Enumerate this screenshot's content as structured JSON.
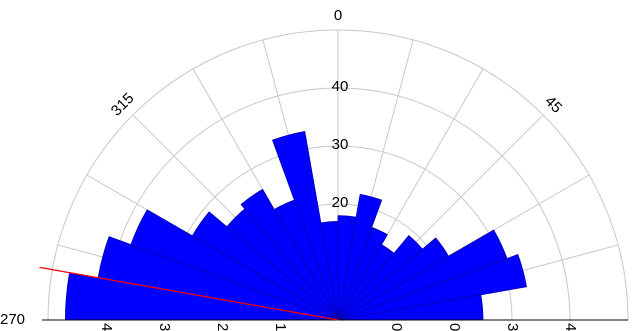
{
  "chart_data": {
    "type": "polar_bar",
    "theta_bins": [
      -90,
      -80,
      -70,
      -60,
      -50,
      -40,
      -30,
      -20,
      -10,
      0,
      10,
      20,
      30,
      40,
      50,
      60,
      70,
      80,
      90
    ],
    "values": [
      47,
      42,
      38,
      29,
      25,
      26,
      22,
      33,
      17,
      18,
      22,
      17,
      15,
      19,
      22,
      31,
      33,
      25
    ],
    "color": "#0000ff",
    "rlim": [
      0,
      50
    ],
    "rticks": [
      20,
      30,
      40
    ],
    "theta_ticks": [
      {
        "value": -90,
        "label": "270"
      },
      {
        "value": -45,
        "label": "315"
      },
      0,
      45
    ],
    "theta_grid_step": 15,
    "r_grid": [
      10,
      20,
      30,
      40,
      50
    ],
    "bottom_labels_left": [
      {
        "value": 40,
        "label": "4"
      },
      {
        "value": 30,
        "label": "3"
      },
      {
        "value": 20,
        "label": "2"
      },
      {
        "value": 10,
        "label": "1"
      }
    ],
    "bottom_labels_right": [
      {
        "value": 10,
        "label": "0"
      },
      {
        "value": 20,
        "label": "0"
      },
      30,
      40
    ],
    "mean_direction": -80,
    "mean_color": "#ff0000"
  }
}
